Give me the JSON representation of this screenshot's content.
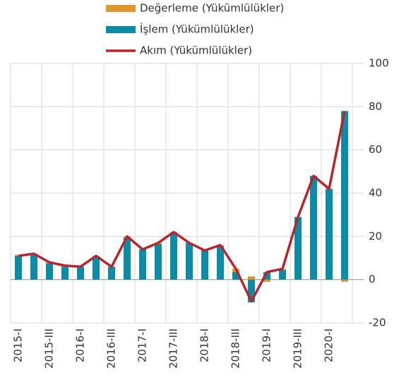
{
  "chart_data": {
    "type": "bar",
    "stacked": true,
    "categories": [
      "2015-I",
      null,
      "2015-III",
      null,
      "2016-I",
      null,
      "2016-III",
      null,
      "2017-I",
      null,
      "2017-III",
      null,
      "2018-I",
      null,
      "2018-III",
      null,
      "2019-I",
      null,
      "2019-III",
      null,
      "2020-I",
      null
    ],
    "series": [
      {
        "name": "Değerleme (Yükümlülükler)",
        "color": "#e0962a",
        "type": "bar",
        "values": [
          0.5,
          0.5,
          0.5,
          0.5,
          0,
          0.5,
          0,
          0.5,
          0,
          0.5,
          0.5,
          0,
          0,
          0.5,
          1.5,
          1.5,
          -1,
          0.5,
          0,
          0,
          0,
          -1
        ]
      },
      {
        "name": "İşlem (Yükümlülükler)",
        "color": "#0a8ca8",
        "type": "bar",
        "values": [
          11,
          11.5,
          7.5,
          6,
          6,
          10.5,
          6,
          19.5,
          14,
          16.5,
          21.5,
          17,
          13.5,
          15.5,
          3.5,
          -10.5,
          3.5,
          4.5,
          29,
          48,
          42,
          78
        ]
      },
      {
        "name": "Akım (Yükümlülükler)",
        "color": "#b5272d",
        "type": "line",
        "values": [
          11,
          12,
          8,
          6.5,
          6,
          11,
          6,
          20,
          14,
          17,
          22,
          17,
          13.5,
          16,
          5,
          -10,
          3.5,
          5,
          29,
          48,
          42,
          78
        ]
      }
    ],
    "ylim": [
      -20,
      100
    ],
    "yticks": [
      -20,
      0,
      20,
      40,
      60,
      80,
      100
    ],
    "grid": true
  }
}
